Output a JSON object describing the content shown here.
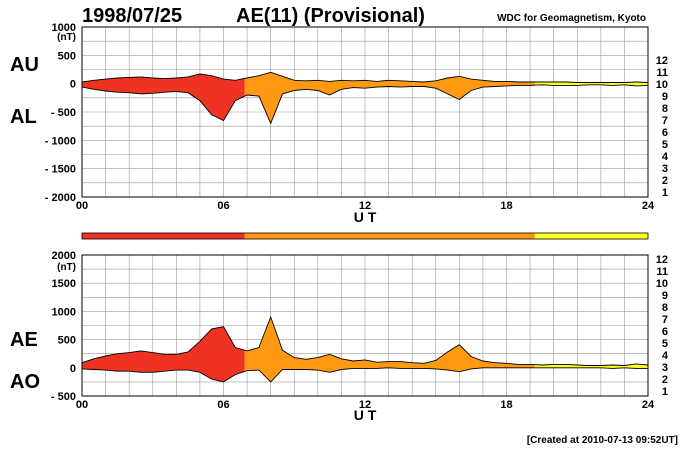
{
  "header": {
    "date": "1998/07/25",
    "index_title": "AE(11) (Provisional)",
    "source": "WDC for Geomagnetism, Kyoto"
  },
  "footer": {
    "created": "[Created at 2010-07-13 09:52UT]"
  },
  "legend": {
    "entries": [
      {
        "label": "12",
        "color": "#ff1493"
      },
      {
        "label": "11",
        "color": "#e00000"
      },
      {
        "label": "10",
        "color": "#ff8c00"
      },
      {
        "label": "9",
        "color": "#ffff00"
      },
      {
        "label": "8",
        "color": "#7fff00"
      },
      {
        "label": "7",
        "color": "#00ffff"
      },
      {
        "label": "6",
        "color": "#0070ff"
      },
      {
        "label": "5",
        "color": "#0000cd"
      },
      {
        "label": "4",
        "color": "#c000ff"
      },
      {
        "label": "3",
        "color": "#000000"
      },
      {
        "label": "2",
        "color": "#8c8c8c"
      },
      {
        "label": "1",
        "color": "#c8c8c8"
      }
    ]
  },
  "colors": {
    "station11": "#ee3322",
    "station10": "#ff9911",
    "station9": "#ffff22",
    "grid": "#9a9a9a"
  },
  "chart_data": [
    {
      "type": "area",
      "title": "AU / AL",
      "label_upper": "AU",
      "label_lower": "AL",
      "xlabel": "U T",
      "ylabel_unit": "(nT)",
      "xlim": [
        0,
        24
      ],
      "ylim": [
        -2000,
        1000
      ],
      "x_ticks": [
        "00",
        "06",
        "12",
        "18",
        "24"
      ],
      "y_ticks": [
        "1000",
        "500",
        "0",
        "- 500",
        "- 1000",
        "- 1500",
        "- 2000"
      ],
      "y_tick_values": [
        1000,
        500,
        0,
        -500,
        -1000,
        -1500,
        -2000
      ],
      "series": [
        {
          "name": "AU",
          "x": [
            0,
            0.5,
            1,
            1.5,
            2,
            2.5,
            3,
            3.5,
            4,
            4.5,
            5,
            5.5,
            6,
            6.5,
            7,
            7.5,
            8,
            8.5,
            9,
            9.5,
            10,
            10.5,
            11,
            11.5,
            12,
            12.5,
            13,
            13.5,
            14,
            14.5,
            15,
            15.5,
            16,
            16.5,
            17,
            17.5,
            18,
            18.5,
            19,
            19.5,
            20,
            20.5,
            21,
            21.5,
            22,
            22.5,
            23,
            23.5,
            24
          ],
          "values": [
            30,
            60,
            80,
            100,
            110,
            120,
            100,
            90,
            100,
            120,
            170,
            140,
            80,
            60,
            100,
            140,
            200,
            130,
            60,
            50,
            60,
            40,
            60,
            50,
            60,
            40,
            60,
            50,
            40,
            30,
            50,
            100,
            130,
            80,
            60,
            40,
            40,
            30,
            30,
            30,
            30,
            30,
            20,
            20,
            20,
            20,
            20,
            30,
            20
          ]
        },
        {
          "name": "AL",
          "x": [
            0,
            0.5,
            1,
            1.5,
            2,
            2.5,
            3,
            3.5,
            4,
            4.5,
            5,
            5.5,
            6,
            6.5,
            7,
            7.5,
            8,
            8.5,
            9,
            9.5,
            10,
            10.5,
            11,
            11.5,
            12,
            12.5,
            13,
            13.5,
            14,
            14.5,
            15,
            15.5,
            16,
            16.5,
            17,
            17.5,
            18,
            18.5,
            19,
            19.5,
            20,
            20.5,
            21,
            21.5,
            22,
            22.5,
            23,
            23.5,
            24
          ],
          "values": [
            -60,
            -100,
            -130,
            -150,
            -160,
            -180,
            -170,
            -150,
            -140,
            -160,
            -300,
            -550,
            -650,
            -300,
            -200,
            -220,
            -700,
            -180,
            -120,
            -100,
            -120,
            -200,
            -100,
            -70,
            -80,
            -60,
            -50,
            -60,
            -50,
            -50,
            -80,
            -180,
            -280,
            -120,
            -60,
            -50,
            -40,
            -30,
            -30,
            -20,
            -30,
            -30,
            -30,
            -20,
            -20,
            -30,
            -20,
            -40,
            -30
          ]
        }
      ],
      "station_bar": [
        {
          "station": "11",
          "from": 0,
          "to": 6.9
        },
        {
          "station": "10",
          "from": 6.9,
          "to": 19.2
        },
        {
          "station": "9",
          "from": 19.2,
          "to": 24
        }
      ]
    },
    {
      "type": "area",
      "title": "AE / AO",
      "label_upper": "AE",
      "label_lower": "AO",
      "xlabel": "U T",
      "ylabel_unit": "(nT)",
      "xlim": [
        0,
        24
      ],
      "ylim": [
        -500,
        2000
      ],
      "x_ticks": [
        "00",
        "06",
        "12",
        "18",
        "24"
      ],
      "y_ticks": [
        "2000",
        "1500",
        "1000",
        "500",
        "0",
        "- 500"
      ],
      "y_tick_values": [
        2000,
        1500,
        1000,
        500,
        0,
        -500
      ],
      "series": [
        {
          "name": "AE",
          "x": [
            0,
            0.5,
            1,
            1.5,
            2,
            2.5,
            3,
            3.5,
            4,
            4.5,
            5,
            5.5,
            6,
            6.5,
            7,
            7.5,
            8,
            8.5,
            9,
            9.5,
            10,
            10.5,
            11,
            11.5,
            12,
            12.5,
            13,
            13.5,
            14,
            14.5,
            15,
            15.5,
            16,
            16.5,
            17,
            17.5,
            18,
            18.5,
            19,
            19.5,
            20,
            20.5,
            21,
            21.5,
            22,
            22.5,
            23,
            23.5,
            24
          ],
          "values": [
            90,
            160,
            210,
            250,
            270,
            300,
            270,
            240,
            240,
            280,
            470,
            690,
            730,
            360,
            300,
            360,
            900,
            310,
            180,
            150,
            180,
            240,
            160,
            120,
            140,
            100,
            110,
            110,
            90,
            80,
            130,
            280,
            410,
            200,
            120,
            90,
            80,
            60,
            60,
            50,
            60,
            60,
            50,
            40,
            40,
            50,
            40,
            70,
            50
          ]
        },
        {
          "name": "AO",
          "x": [
            0,
            0.5,
            1,
            1.5,
            2,
            2.5,
            3,
            3.5,
            4,
            4.5,
            5,
            5.5,
            6,
            6.5,
            7,
            7.5,
            8,
            8.5,
            9,
            9.5,
            10,
            10.5,
            11,
            11.5,
            12,
            12.5,
            13,
            13.5,
            14,
            14.5,
            15,
            15.5,
            16,
            16.5,
            17,
            17.5,
            18,
            18.5,
            19,
            19.5,
            20,
            20.5,
            21,
            21.5,
            22,
            22.5,
            23,
            23.5,
            24
          ],
          "values": [
            -20,
            -30,
            -40,
            -60,
            -60,
            -80,
            -80,
            -60,
            -40,
            -40,
            -80,
            -200,
            -250,
            -120,
            -50,
            -40,
            -250,
            -30,
            -30,
            -30,
            -40,
            -80,
            -30,
            -10,
            -10,
            -10,
            0,
            -10,
            -10,
            -10,
            -20,
            -40,
            -70,
            -20,
            0,
            0,
            0,
            0,
            0,
            0,
            0,
            0,
            0,
            0,
            0,
            -10,
            0,
            -10,
            -10
          ]
        }
      ]
    }
  ]
}
